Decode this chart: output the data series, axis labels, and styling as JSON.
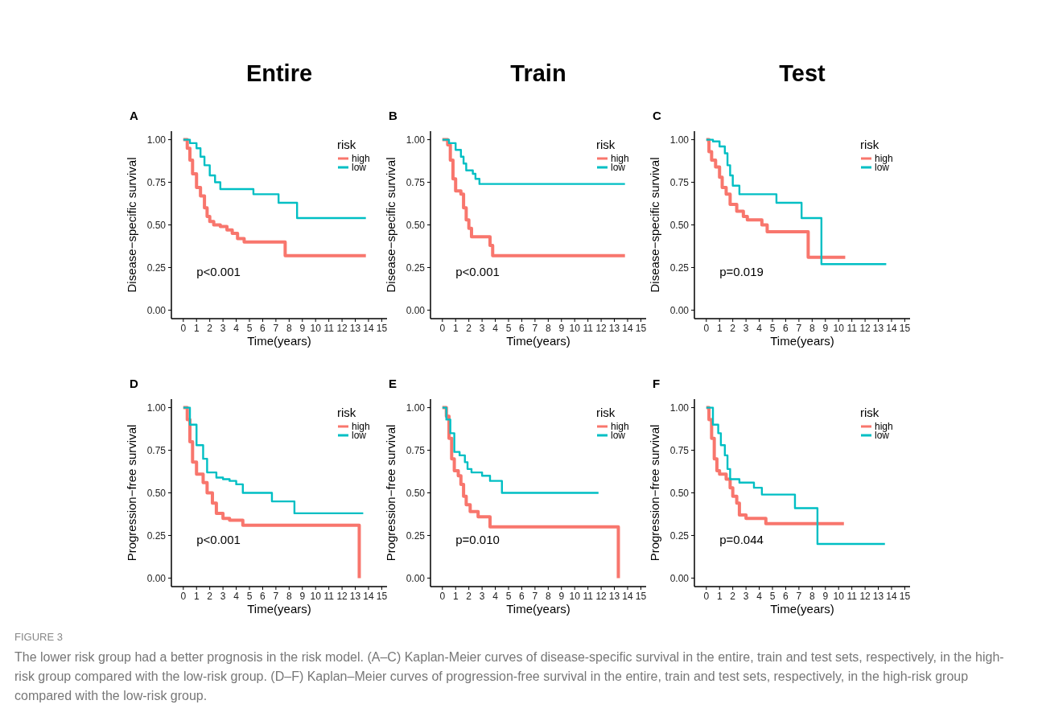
{
  "chart_data": [
    {
      "type": "step",
      "title": "Entire",
      "ylabel": "Disease−specific survival",
      "xlabel": "Time(years)",
      "legend_title": "risk",
      "legend": "right",
      "xlim": [
        -0.9,
        15.4
      ],
      "ylim": [
        -0.05,
        1.05
      ],
      "xticks": [
        0,
        1,
        2,
        3,
        4,
        5,
        6,
        7,
        8,
        9,
        10,
        11,
        12,
        13,
        14,
        15
      ],
      "yticks": [
        {
          "value": 0,
          "label": "0.00"
        },
        {
          "value": 0.25,
          "label": "0.25"
        },
        {
          "value": 0.5,
          "label": "0.50"
        },
        {
          "value": 0.75,
          "label": "0.75"
        },
        {
          "value": 1,
          "label": "1.00"
        }
      ],
      "annotations": [
        "A",
        "p<0.001",
        "FIGURE 3",
        "The lower risk group had a better prognosis in the risk model. (A–C) Kaplan-Meier curves of disease-specific survival in the entire, train and test sets, respectively, in the high-risk group compared with the low-risk group. (D–F) Kaplan–Meier curves of progression-free survival in the entire, train and test sets, respectively, in the high-risk group compared with the low-risk group."
      ],
      "series": [
        {
          "name": "high",
          "color": "#f8766d",
          "x": [
            0,
            0.3,
            0.5,
            0.7,
            1,
            1.3,
            1.6,
            1.8,
            2,
            2.3,
            2.8,
            3.3,
            3.7,
            4.1,
            4.6,
            7.7,
            13.8
          ],
          "values": [
            1,
            0.95,
            0.88,
            0.8,
            0.72,
            0.67,
            0.6,
            0.55,
            0.52,
            0.5,
            0.49,
            0.47,
            0.45,
            0.42,
            0.4,
            0.32,
            0.32
          ]
        },
        {
          "name": "low",
          "color": "#00bfc4",
          "x": [
            0,
            0.5,
            1,
            1.3,
            1.6,
            2,
            2.4,
            2.8,
            5.3,
            7.2,
            8.6,
            13.8
          ],
          "values": [
            1,
            0.98,
            0.95,
            0.9,
            0.85,
            0.79,
            0.75,
            0.71,
            0.68,
            0.63,
            0.54,
            0.54
          ]
        }
      ]
    },
    {
      "type": "step",
      "title": "Train",
      "ylabel": "Disease−specific survival",
      "xlabel": "Time(years)",
      "legend_title": "risk",
      "legend": "right",
      "xlim": [
        -0.9,
        15.4
      ],
      "ylim": [
        -0.05,
        1.05
      ],
      "xticks": [
        0,
        1,
        2,
        3,
        4,
        5,
        6,
        7,
        8,
        9,
        10,
        11,
        12,
        13,
        14,
        15
      ],
      "yticks": [
        {
          "value": 0,
          "label": "0.00"
        },
        {
          "value": 0.25,
          "label": "0.25"
        },
        {
          "value": 0.5,
          "label": "0.50"
        },
        {
          "value": 0.75,
          "label": "0.75"
        },
        {
          "value": 1,
          "label": "1.00"
        }
      ],
      "annotations": [
        "B",
        "p<0.001"
      ],
      "series": [
        {
          "name": "high",
          "color": "#f8766d",
          "x": [
            0,
            0.4,
            0.6,
            0.8,
            1,
            1.4,
            1.6,
            1.8,
            2,
            2.2,
            3.6,
            3.8,
            13.8
          ],
          "values": [
            1,
            0.97,
            0.88,
            0.77,
            0.7,
            0.68,
            0.6,
            0.53,
            0.48,
            0.43,
            0.38,
            0.32,
            0.32
          ]
        },
        {
          "name": "low",
          "color": "#00bfc4",
          "x": [
            0,
            0.5,
            1,
            1.4,
            1.6,
            1.8,
            2.3,
            2.5,
            2.8,
            13.8
          ],
          "values": [
            1,
            0.98,
            0.94,
            0.9,
            0.86,
            0.82,
            0.8,
            0.77,
            0.74,
            0.74
          ]
        }
      ]
    },
    {
      "type": "step",
      "title": "Test",
      "ylabel": "Disease−specific survival",
      "xlabel": "Time(years)",
      "legend_title": "risk",
      "legend": "right",
      "xlim": [
        -0.9,
        15.4
      ],
      "ylim": [
        -0.05,
        1.05
      ],
      "xticks": [
        0,
        1,
        2,
        3,
        4,
        5,
        6,
        7,
        8,
        9,
        10,
        11,
        12,
        13,
        14,
        15
      ],
      "yticks": [
        {
          "value": 0,
          "label": "0.00"
        },
        {
          "value": 0.25,
          "label": "0.25"
        },
        {
          "value": 0.5,
          "label": "0.50"
        },
        {
          "value": 0.75,
          "label": "0.75"
        },
        {
          "value": 1,
          "label": "1.00"
        }
      ],
      "annotations": [
        "C",
        "p=0.019"
      ],
      "series": [
        {
          "name": "high",
          "color": "#f8766d",
          "x": [
            0,
            0.2,
            0.4,
            0.7,
            1,
            1.2,
            1.5,
            1.8,
            2.3,
            2.8,
            3.1,
            4.2,
            4.6,
            7.7,
            10.5
          ],
          "values": [
            1,
            0.93,
            0.88,
            0.84,
            0.78,
            0.72,
            0.68,
            0.62,
            0.58,
            0.55,
            0.53,
            0.5,
            0.46,
            0.31,
            0.31
          ]
        },
        {
          "name": "low",
          "color": "#00bfc4",
          "x": [
            0,
            0.5,
            1,
            1.4,
            1.6,
            1.8,
            2,
            2.5,
            5.3,
            7.2,
            8.7,
            13.6
          ],
          "values": [
            1,
            0.99,
            0.96,
            0.92,
            0.85,
            0.79,
            0.73,
            0.68,
            0.63,
            0.54,
            0.27,
            0.27
          ]
        }
      ]
    },
    {
      "type": "step",
      "ylabel": "Progression−free survival",
      "xlabel": "Time(years)",
      "legend_title": "risk",
      "legend": "right",
      "xlim": [
        -0.9,
        15.4
      ],
      "ylim": [
        -0.05,
        1.05
      ],
      "xticks": [
        0,
        1,
        2,
        3,
        4,
        5,
        6,
        7,
        8,
        9,
        10,
        11,
        12,
        13,
        14,
        15
      ],
      "yticks": [
        {
          "value": 0,
          "label": "0.00"
        },
        {
          "value": 0.25,
          "label": "0.25"
        },
        {
          "value": 0.5,
          "label": "0.50"
        },
        {
          "value": 0.75,
          "label": "0.75"
        },
        {
          "value": 1,
          "label": "1.00"
        }
      ],
      "annotations": [
        "D",
        "p<0.001"
      ],
      "series": [
        {
          "name": "high",
          "color": "#f8766d",
          "x": [
            0,
            0.3,
            0.5,
            0.7,
            1,
            1.5,
            1.8,
            2.2,
            2.5,
            3,
            3.5,
            4.5,
            13.3
          ],
          "values": [
            1,
            0.93,
            0.8,
            0.68,
            0.61,
            0.56,
            0.5,
            0.44,
            0.38,
            0.35,
            0.34,
            0.31,
            0
          ]
        },
        {
          "name": "low",
          "color": "#00bfc4",
          "x": [
            0,
            0.5,
            1,
            1.5,
            1.8,
            2.5,
            3,
            3.5,
            4,
            4.5,
            6.7,
            8.4,
            13.6
          ],
          "values": [
            1,
            0.9,
            0.78,
            0.7,
            0.62,
            0.59,
            0.58,
            0.57,
            0.55,
            0.5,
            0.45,
            0.38,
            0.38
          ]
        }
      ]
    },
    {
      "type": "step",
      "ylabel": "Progression−free survival",
      "xlabel": "Time(years)",
      "legend_title": "risk",
      "legend": "right",
      "xlim": [
        -0.9,
        15.4
      ],
      "ylim": [
        -0.05,
        1.05
      ],
      "xticks": [
        0,
        1,
        2,
        3,
        4,
        5,
        6,
        7,
        8,
        9,
        10,
        11,
        12,
        13,
        14,
        15
      ],
      "yticks": [
        {
          "value": 0,
          "label": "0.00"
        },
        {
          "value": 0.25,
          "label": "0.25"
        },
        {
          "value": 0.5,
          "label": "0.50"
        },
        {
          "value": 0.75,
          "label": "0.75"
        },
        {
          "value": 1,
          "label": "1.00"
        }
      ],
      "annotations": [
        "E",
        "p=0.010"
      ],
      "series": [
        {
          "name": "high",
          "color": "#f8766d",
          "x": [
            0,
            0.3,
            0.5,
            0.7,
            0.9,
            1.2,
            1.4,
            1.6,
            1.8,
            2.1,
            2.7,
            3.6,
            13.3
          ],
          "values": [
            1,
            0.95,
            0.82,
            0.7,
            0.63,
            0.6,
            0.55,
            0.48,
            0.43,
            0.39,
            0.36,
            0.3,
            0
          ]
        },
        {
          "name": "low",
          "color": "#00bfc4",
          "x": [
            0,
            0.3,
            0.6,
            0.9,
            1.3,
            1.7,
            1.9,
            2.2,
            3,
            3.6,
            4.5,
            11.8
          ],
          "values": [
            1,
            0.93,
            0.85,
            0.74,
            0.72,
            0.68,
            0.64,
            0.62,
            0.6,
            0.57,
            0.5,
            0.5
          ]
        }
      ]
    },
    {
      "type": "step",
      "ylabel": "Progression−free survival",
      "xlabel": "Time(years)",
      "legend_title": "risk",
      "legend": "right",
      "xlim": [
        -0.9,
        15.4
      ],
      "ylim": [
        -0.05,
        1.05
      ],
      "xticks": [
        0,
        1,
        2,
        3,
        4,
        5,
        6,
        7,
        8,
        9,
        10,
        11,
        12,
        13,
        14,
        15
      ],
      "yticks": [
        {
          "value": 0,
          "label": "0.00"
        },
        {
          "value": 0.25,
          "label": "0.25"
        },
        {
          "value": 0.5,
          "label": "0.50"
        },
        {
          "value": 0.75,
          "label": "0.75"
        },
        {
          "value": 1,
          "label": "1.00"
        }
      ],
      "annotations": [
        "F",
        "p=0.044"
      ],
      "series": [
        {
          "name": "high",
          "color": "#f8766d",
          "x": [
            0,
            0.2,
            0.4,
            0.6,
            0.8,
            1,
            1.5,
            1.8,
            2,
            2.3,
            2.5,
            3,
            4.5,
            10.4
          ],
          "values": [
            1,
            0.93,
            0.82,
            0.7,
            0.63,
            0.61,
            0.58,
            0.53,
            0.48,
            0.44,
            0.37,
            0.35,
            0.32,
            0.32
          ]
        },
        {
          "name": "low",
          "color": "#00bfc4",
          "x": [
            0,
            0.5,
            0.9,
            1.1,
            1.4,
            1.6,
            1.8,
            2.5,
            3.6,
            4.2,
            6.7,
            8.4,
            13.5
          ],
          "values": [
            1,
            0.9,
            0.85,
            0.78,
            0.72,
            0.64,
            0.58,
            0.56,
            0.53,
            0.49,
            0.41,
            0.2,
            0.2
          ]
        }
      ]
    }
  ]
}
